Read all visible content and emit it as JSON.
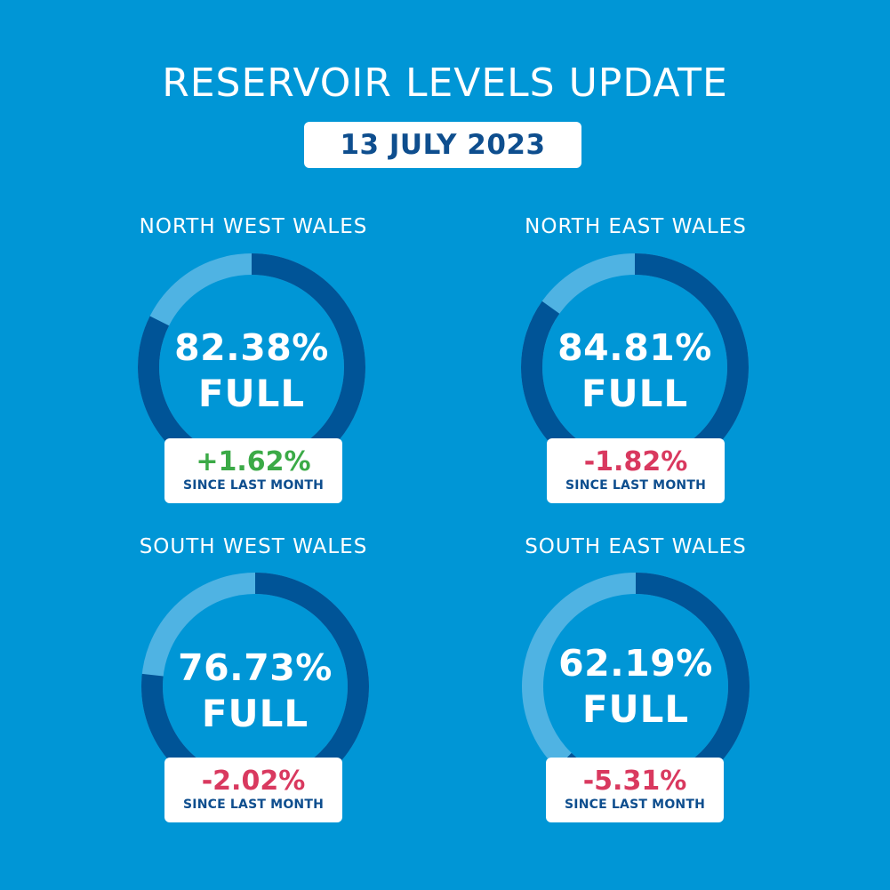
{
  "header": {
    "title": "RESERVOIR LEVELS UPDATE",
    "date": "13 JULY 2023"
  },
  "colors": {
    "background": "#0096d6",
    "ring_filled": "#005497",
    "ring_remaining": "#4fb3e3",
    "positive": "#3baa47",
    "negative": "#d9395f",
    "navy_text": "#0e4e8e"
  },
  "regions": [
    {
      "name": "NORTH WEST WALES",
      "percent_label": "82.38%",
      "full_label": "FULL",
      "change": "+1.62%",
      "since_label": "SINCE LAST MONTH",
      "direction": "up"
    },
    {
      "name": "NORTH EAST WALES",
      "percent_label": "84.81%",
      "full_label": "FULL",
      "change": "-1.82%",
      "since_label": "SINCE LAST MONTH",
      "direction": "down"
    },
    {
      "name": "SOUTH WEST WALES",
      "percent_label": "76.73%",
      "full_label": "FULL",
      "change": "-2.02%",
      "since_label": "SINCE LAST MONTH",
      "direction": "down"
    },
    {
      "name": "SOUTH EAST WALES",
      "percent_label": "62.19%",
      "full_label": "FULL",
      "change": "-5.31%",
      "since_label": "SINCE LAST MONTH",
      "direction": "down"
    }
  ],
  "chart_data": {
    "type": "pie",
    "title": "RESERVOIR LEVELS UPDATE",
    "subtitle": "13 JULY 2023",
    "categories": [
      "NORTH WEST WALES",
      "NORTH EAST WALES",
      "SOUTH WEST WALES",
      "SOUTH EAST WALES"
    ],
    "series": [
      {
        "name": "Percent full",
        "values": [
          82.38,
          84.81,
          76.73,
          62.19
        ]
      },
      {
        "name": "Change since last month",
        "values": [
          1.62,
          -1.82,
          -2.02,
          -5.31
        ]
      }
    ],
    "unit": "%",
    "layout": "2x2 grid of donut gauges, filled arc clockwise from top"
  }
}
